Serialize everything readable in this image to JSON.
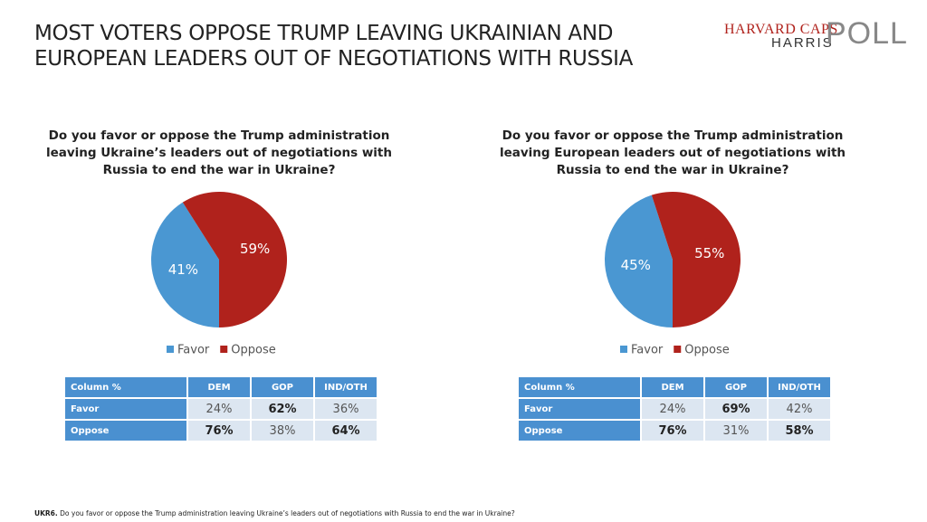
{
  "header": {
    "title_line1": "MOST VOTERS OPPOSE TRUMP LEAVING UKRAINIAN AND",
    "title_line2": "EUROPEAN LEADERS OUT OF NEGOTIATIONS WITH RUSSIA"
  },
  "logo": {
    "line1": "HARVARD CAPS",
    "line2": "HARRIS",
    "poll": "POLL"
  },
  "chart_data": [
    {
      "type": "pie",
      "title": "Do you favor or oppose the Trump administration leaving Ukraine’s leaders out of negotiations with Russia to end the war in Ukraine?",
      "categories": [
        "Favor",
        "Oppose"
      ],
      "values": [
        41,
        59
      ],
      "value_labels": [
        "41%",
        "59%"
      ],
      "colors": [
        "#4a97d2",
        "#b0221c"
      ]
    },
    {
      "type": "pie",
      "title": "Do you favor or oppose the Trump administration leaving European leaders out of negotiations with Russia to end the war in Ukraine?",
      "categories": [
        "Favor",
        "Oppose"
      ],
      "values": [
        45,
        55
      ],
      "value_labels": [
        "45%",
        "55%"
      ],
      "colors": [
        "#4a97d2",
        "#b0221c"
      ]
    }
  ],
  "tables": [
    {
      "header": [
        "Column %",
        "DEM",
        "GOP",
        "IND/OTH"
      ],
      "rows": [
        [
          "Favor",
          "24%",
          "62%",
          "36%"
        ],
        [
          "Oppose",
          "76%",
          "38%",
          "64%"
        ]
      ]
    },
    {
      "header": [
        "Column %",
        "DEM",
        "GOP",
        "IND/OTH"
      ],
      "rows": [
        [
          "Favor",
          "24%",
          "69%",
          "42%"
        ],
        [
          "Oppose",
          "76%",
          "31%",
          "58%"
        ]
      ]
    }
  ],
  "footnote": {
    "label": "UKR6.",
    "text": "Do you favor or oppose the Trump administration leaving Ukraine’s leaders out of negotiations with Russia to end the war in Ukraine?"
  }
}
